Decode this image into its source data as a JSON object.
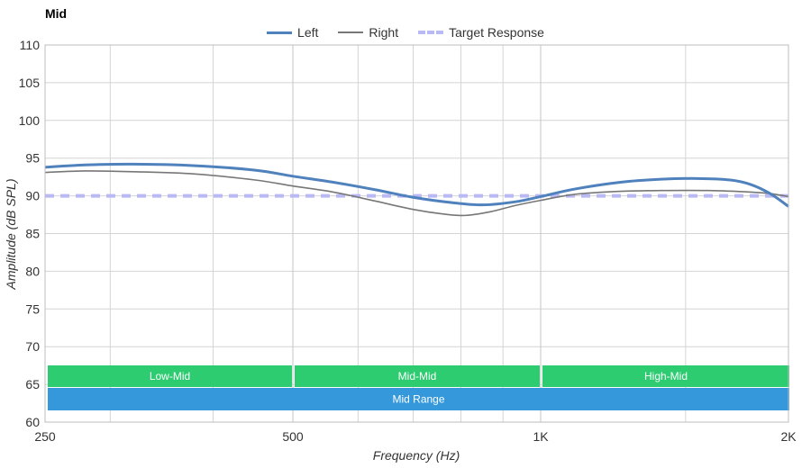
{
  "title": "Mid",
  "chart_data": {
    "type": "line",
    "xlabel": "Frequency (Hz)",
    "ylabel": "Amplitude (dB SPL)",
    "x_scale": "log",
    "xlim": [
      250,
      2000
    ],
    "ylim": [
      60,
      110
    ],
    "y_ticks": [
      60,
      65,
      70,
      75,
      80,
      85,
      90,
      95,
      100,
      105,
      110
    ],
    "x_ticks": [
      {
        "value": 250,
        "label": "250"
      },
      {
        "value": 500,
        "label": "500"
      },
      {
        "value": 1000,
        "label": "1K"
      },
      {
        "value": 2000,
        "label": "2K"
      }
    ],
    "x_minor_gridlines": [
      300,
      400,
      600,
      700,
      800,
      900,
      1500
    ],
    "grid": true,
    "legend_position": "top-center",
    "series": [
      {
        "name": "Left",
        "color": "#4f81bd",
        "style": "solid-thick",
        "points": [
          [
            250,
            93.8
          ],
          [
            280,
            94.1
          ],
          [
            320,
            94.2
          ],
          [
            380,
            94.0
          ],
          [
            450,
            93.4
          ],
          [
            500,
            92.6
          ],
          [
            560,
            91.8
          ],
          [
            630,
            90.8
          ],
          [
            700,
            89.8
          ],
          [
            780,
            89.1
          ],
          [
            850,
            88.8
          ],
          [
            930,
            89.2
          ],
          [
            1000,
            89.9
          ],
          [
            1100,
            90.9
          ],
          [
            1250,
            91.8
          ],
          [
            1400,
            92.2
          ],
          [
            1550,
            92.3
          ],
          [
            1700,
            92.1
          ],
          [
            1800,
            91.5
          ],
          [
            1900,
            90.3
          ],
          [
            2000,
            88.6
          ]
        ]
      },
      {
        "name": "Right",
        "color": "#777777",
        "style": "solid-thin",
        "points": [
          [
            250,
            93.1
          ],
          [
            280,
            93.3
          ],
          [
            320,
            93.2
          ],
          [
            380,
            92.9
          ],
          [
            450,
            92.1
          ],
          [
            500,
            91.3
          ],
          [
            560,
            90.5
          ],
          [
            630,
            89.3
          ],
          [
            700,
            88.2
          ],
          [
            760,
            87.6
          ],
          [
            810,
            87.4
          ],
          [
            870,
            87.9
          ],
          [
            930,
            88.7
          ],
          [
            1000,
            89.4
          ],
          [
            1100,
            90.2
          ],
          [
            1250,
            90.6
          ],
          [
            1400,
            90.7
          ],
          [
            1600,
            90.7
          ],
          [
            1800,
            90.5
          ],
          [
            1900,
            90.3
          ],
          [
            2000,
            89.9
          ]
        ]
      },
      {
        "name": "Target Response",
        "color": "#b9b9f5",
        "style": "dashed",
        "points": [
          [
            250,
            90
          ],
          [
            2000,
            90
          ]
        ]
      }
    ],
    "bands": [
      {
        "label": "Low-Mid",
        "from": 250,
        "to": 500,
        "row": 1,
        "color": "#2ecc71"
      },
      {
        "label": "Mid-Mid",
        "from": 500,
        "to": 1000,
        "row": 1,
        "color": "#2ecc71"
      },
      {
        "label": "High-Mid",
        "from": 1000,
        "to": 2000,
        "row": 1,
        "color": "#2ecc71"
      },
      {
        "label": "Mid Range",
        "from": 250,
        "to": 2000,
        "row": 2,
        "color": "#3498db"
      }
    ]
  }
}
